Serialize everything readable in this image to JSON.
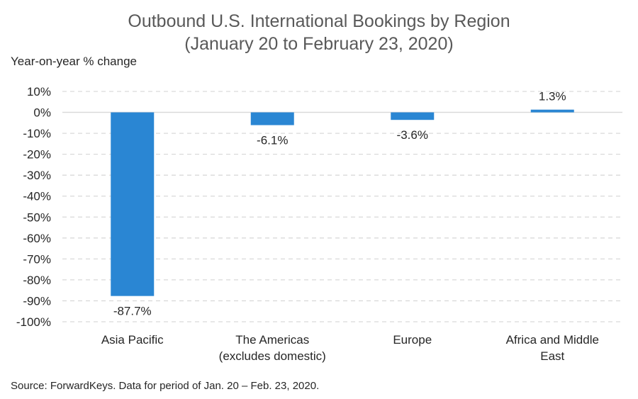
{
  "chart_data": {
    "type": "bar",
    "title": "Outbound U.S. International Bookings by Region",
    "subtitle": "(January 20 to February 23, 2020)",
    "ylabel": "Year-on-year % change",
    "categories": [
      [
        "Asia Pacific"
      ],
      [
        "The Americas",
        "(excludes domestic)"
      ],
      [
        "Europe"
      ],
      [
        "Africa and Middle",
        "East"
      ]
    ],
    "values": [
      -87.7,
      -6.1,
      -3.6,
      1.3
    ],
    "data_labels": [
      "-87.7%",
      "-6.1%",
      "-3.6%",
      "1.3%"
    ],
    "ylim": [
      -100,
      10
    ],
    "yticks": [
      10,
      0,
      -10,
      -20,
      -30,
      -40,
      -50,
      -60,
      -70,
      -80,
      -90,
      -100
    ],
    "ytick_labels": [
      "10%",
      "0%",
      "-10%",
      "-20%",
      "-30%",
      "-40%",
      "-50%",
      "-60%",
      "-70%",
      "-80%",
      "-90%",
      "-100%"
    ],
    "grid": true,
    "bar_color": "#2A86D3",
    "gridline_color": "#D9D9D9",
    "zero_line_color": "#D9D9D9"
  },
  "source": "Source: ForwardKeys. Data for period of Jan. 20 – Feb. 23, 2020."
}
